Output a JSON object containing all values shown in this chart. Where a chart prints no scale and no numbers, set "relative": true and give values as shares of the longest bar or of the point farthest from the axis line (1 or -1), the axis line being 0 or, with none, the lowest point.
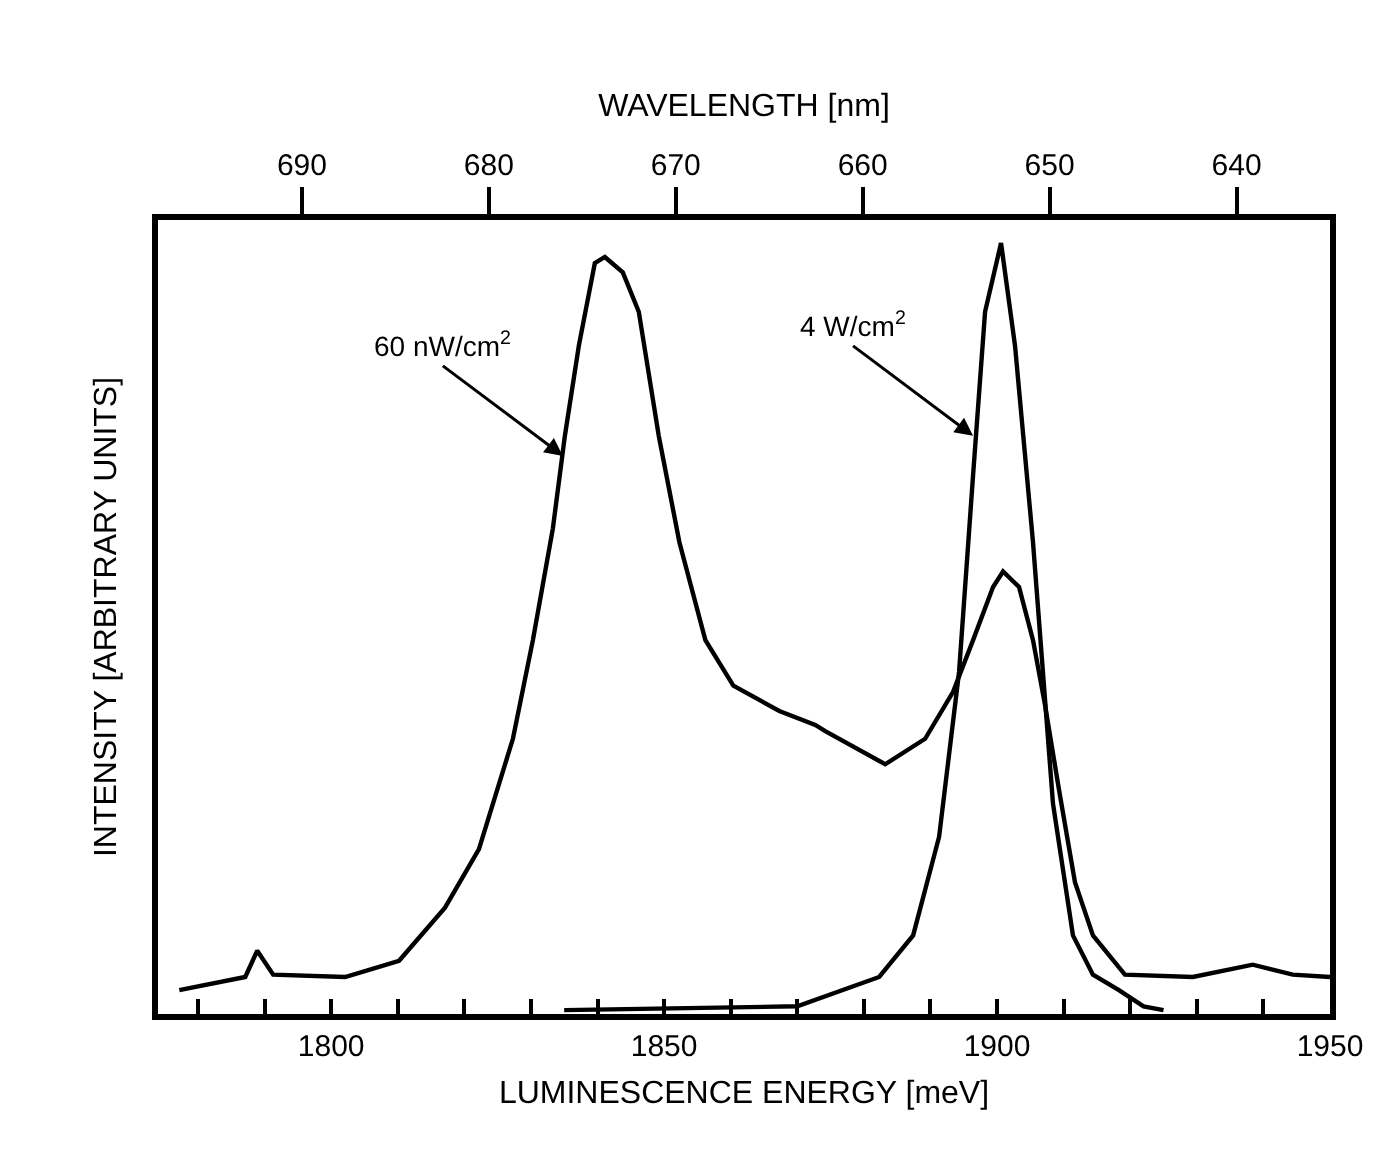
{
  "chart_data": {
    "type": "line",
    "relative": true,
    "xlabel": "LUMINESCENCE ENERGY [meV]",
    "ylabel": "INTENSITY [ARBITRARY UNITS]",
    "x2label": "WAVELENGTH [nm]",
    "xlim": [
      1774,
      1950
    ],
    "xticks": [
      {
        "value": 1780,
        "label": null
      },
      {
        "value": 1790,
        "label": null
      },
      1800,
      {
        "value": 1810,
        "label": null
      },
      {
        "value": 1820,
        "label": null
      },
      {
        "value": 1830,
        "label": null
      },
      {
        "value": 1840,
        "label": null
      },
      1850,
      {
        "value": 1860,
        "label": null
      },
      {
        "value": 1870,
        "label": null
      },
      {
        "value": 1880,
        "label": null
      },
      {
        "value": 1890,
        "label": null
      },
      1900,
      {
        "value": 1910,
        "label": null
      },
      {
        "value": 1920,
        "label": null
      },
      {
        "value": 1930,
        "label": null
      },
      {
        "value": 1940,
        "label": null
      },
      1950
    ],
    "x2lim": [
      697.7,
      635.0
    ],
    "x2ticks": [
      690,
      680,
      670,
      660,
      650,
      640
    ],
    "legend": false,
    "marker": "none",
    "line_style": "solid",
    "series": [
      {
        "color": "#000000",
        "x": [
          1777.2,
          1787.1,
          1788.9,
          1791.3,
          1802.1,
          1810.2,
          1817.1,
          1822.2,
          1827.3,
          1830.3,
          1833.3,
          1835.1,
          1837.2,
          1839.6,
          1841.1,
          1843.8,
          1846.2,
          1849.2,
          1852.3,
          1856.2,
          1860.4,
          1867.3,
          1872.7,
          1874.2,
          1883.2,
          1889.2,
          1893.4,
          1896.4,
          1899.4,
          1900.9,
          1903.3,
          1905.4,
          1907.2,
          1909.3,
          1911.7,
          1914.4,
          1919.2,
          1929.4,
          1938.4,
          1944.4,
          1950
        ],
        "values": [
          0.031,
          0.048,
          0.082,
          0.051,
          0.048,
          0.069,
          0.138,
          0.214,
          0.357,
          0.485,
          0.63,
          0.75,
          0.867,
          0.974,
          0.982,
          0.962,
          0.911,
          0.75,
          0.612,
          0.485,
          0.426,
          0.393,
          0.375,
          0.367,
          0.324,
          0.357,
          0.418,
          0.485,
          0.554,
          0.574,
          0.554,
          0.485,
          0.401,
          0.291,
          0.171,
          0.102,
          0.051,
          0.048,
          0.064,
          0.051,
          0.048
        ]
      },
      {
        "color": "#000000",
        "x": [
          1835,
          1870,
          1882.3,
          1887.4,
          1891.3,
          1894.3,
          1896.4,
          1898.2,
          1900.6,
          1902.7,
          1905.4,
          1908.4,
          1911.4,
          1914.4,
          1918.3,
          1922,
          1925
        ],
        "values": [
          0.005,
          0.01,
          0.048,
          0.102,
          0.23,
          0.444,
          0.699,
          0.911,
          1.0,
          0.867,
          0.612,
          0.273,
          0.102,
          0.051,
          0.031,
          0.01,
          0.005
        ]
      }
    ],
    "annotations": [
      {
        "text": "60 nW/cm$^{2}$",
        "x": 1834.8,
        "y": 0.724
      },
      {
        "text": "4 W/cm$^{2}$",
        "x": 1896.4,
        "y": 0.75
      }
    ]
  }
}
